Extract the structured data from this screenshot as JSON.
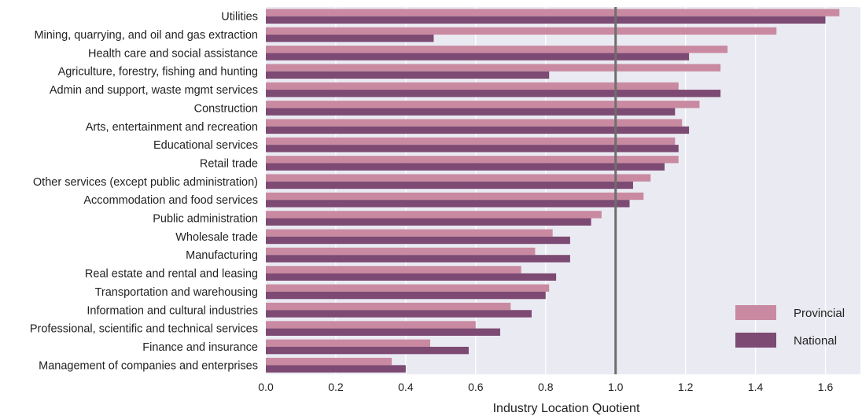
{
  "chart_data": {
    "type": "bar",
    "orientation": "horizontal",
    "categories": [
      "Utilities",
      "Mining, quarrying, and oil and gas extraction",
      "Health care and social assistance",
      "Agriculture, forestry, fishing and hunting",
      "Admin and support, waste mgmt services",
      "Construction",
      "Arts, entertainment and recreation",
      "Educational services",
      "Retail trade",
      "Other services (except public administration)",
      "Accommodation and food services",
      "Public administration",
      "Wholesale trade",
      "Manufacturing",
      "Real estate and rental and leasing",
      "Transportation and warehousing",
      "Information and cultural industries",
      "Professional, scientific and technical services",
      "Finance and insurance",
      "Management of companies and enterprises"
    ],
    "series": [
      {
        "name": "Provincial",
        "color": "#c98aa1",
        "values": [
          1.64,
          1.46,
          1.32,
          1.3,
          1.18,
          1.24,
          1.19,
          1.17,
          1.18,
          1.1,
          1.08,
          0.96,
          0.82,
          0.77,
          0.73,
          0.81,
          0.7,
          0.6,
          0.47,
          0.36
        ]
      },
      {
        "name": "National",
        "color": "#7d4a73",
        "values": [
          1.6,
          0.48,
          1.21,
          0.81,
          1.3,
          1.17,
          1.21,
          1.18,
          1.14,
          1.05,
          1.04,
          0.93,
          0.87,
          0.87,
          0.83,
          0.8,
          0.76,
          0.67,
          0.58,
          0.4
        ]
      }
    ],
    "xlabel": "Industry Location Quotient",
    "xlim": [
      0,
      1.7
    ],
    "xticks": [
      0.0,
      0.2,
      0.4,
      0.6,
      0.8,
      1.0,
      1.2,
      1.4,
      1.6
    ],
    "xtick_labels": [
      "0.0",
      "0.2",
      "0.4",
      "0.6",
      "0.8",
      "1.0",
      "1.2",
      "1.4",
      "1.6"
    ],
    "reference_line_x": 1.0,
    "grid": true,
    "legend_position": "bottom-right",
    "background_color": "#eaeaf2",
    "grid_color": "#ffffff",
    "reference_line_color": "#6e6e6e"
  }
}
